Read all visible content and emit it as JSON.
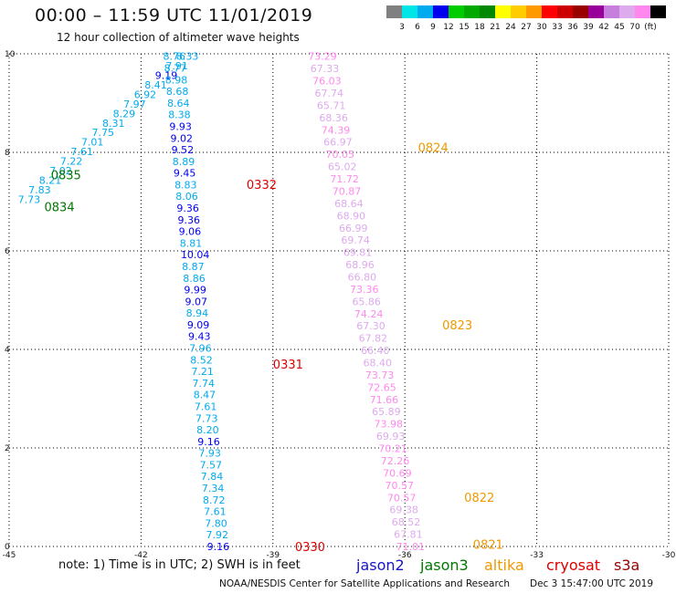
{
  "header": {
    "title": "00:00 – 11:59 UTC 11/01/2019",
    "subtitle": "12 hour collection of altimeter wave heights"
  },
  "colorbar": {
    "colors": [
      "#808080",
      "#00e5e5",
      "#00aaee",
      "#0000ee",
      "#00cc00",
      "#00aa00",
      "#008800",
      "#ffff00",
      "#ffcc00",
      "#ff9900",
      "#ff0000",
      "#cc0000",
      "#990000",
      "#990099",
      "#c77fdd",
      "#ddaaee",
      "#ff88ee",
      "#000000"
    ],
    "labels": [
      "3",
      "6",
      "9",
      "12",
      "15",
      "18",
      "21",
      "24",
      "27",
      "30",
      "33",
      "36",
      "39",
      "42",
      "45",
      "70",
      "(ft)"
    ]
  },
  "footer": {
    "note": "note:  1) Time is in UTC;  2) SWH is in feet",
    "credit": "NOAA/NESDIS Center for Satellite Applications and Research",
    "timestamp": "Dec  3 15:47:00 UTC 2019",
    "legend": [
      {
        "name": "jason2",
        "color": "#1515cc"
      },
      {
        "name": "jason3",
        "color": "#007700"
      },
      {
        "name": "altika",
        "color": "#ee9900"
      },
      {
        "name": "cryosat",
        "color": "#dd0000"
      },
      {
        "name": "s3a",
        "color": "#990000"
      }
    ]
  },
  "chart_data": {
    "type": "scatter",
    "xlim": [
      -45,
      -30
    ],
    "ylim": [
      0,
      10
    ],
    "xticks": [
      "-45",
      "-42",
      "-39",
      "-36",
      "-33",
      "-30"
    ],
    "yticks": [
      "0",
      "2",
      "4",
      "6",
      "8",
      "10"
    ],
    "grid": true,
    "tracks": [
      {
        "satellite": "jason3",
        "start": [
          -41.2,
          9.95
        ],
        "end": [
          -44.8,
          7.05
        ],
        "values": [
          "8.33",
          "7.91",
          "9.19",
          "8.41",
          "6.92",
          "7.97",
          "8.29",
          "8.31",
          "7.75",
          "7.01",
          "7.61",
          "7.22",
          "7.02",
          "8.21",
          "7.83",
          "7.73"
        ]
      },
      {
        "satellite": "cryosat",
        "start": [
          -41.5,
          9.95
        ],
        "end": [
          -40.5,
          0.0
        ],
        "values": [
          "8.76",
          "8.77",
          "8.98",
          "8.68",
          "8.64",
          "8.38",
          "9.93",
          "9.02",
          "9.52",
          "8.89",
          "9.45",
          "8.83",
          "8.06",
          "9.36",
          "9.36",
          "9.06",
          "8.81",
          "10.04",
          "8.87",
          "8.86",
          "9.99",
          "9.07",
          "8.94",
          "9.09",
          "9.43",
          "7.96",
          "8.52",
          "7.21",
          "7.74",
          "8.47",
          "7.61",
          "7.73",
          "8.20",
          "9.16",
          "7.93",
          "7.57",
          "7.84",
          "7.34",
          "8.72",
          "7.61",
          "7.80",
          "7.92",
          "9.16"
        ]
      },
      {
        "satellite": "altika",
        "start": [
          -38.2,
          9.95
        ],
        "end": [
          -36.2,
          0.0
        ],
        "values": [
          "73.29",
          "67.33",
          "76.03",
          "67.74",
          "65.71",
          "68.36",
          "74.39",
          "66.97",
          "70.05",
          "65.02",
          "71.72",
          "70.87",
          "68.64",
          "68.90",
          "66.99",
          "69.74",
          "69.81",
          "68.96",
          "66.80",
          "73.36",
          "65.86",
          "74.24",
          "67.30",
          "67.82",
          "66.40",
          "68.40",
          "73.73",
          "72.65",
          "71.66",
          "65.89",
          "73.98",
          "69.93",
          "70.21",
          "72.26",
          "70.69",
          "70.57",
          "70.57",
          "69.38",
          "68.52",
          "67.81",
          "71.01"
        ]
      }
    ],
    "time_labels": [
      {
        "text": "0835",
        "satellite": "jason3",
        "x": -44.05,
        "y": 7.55
      },
      {
        "text": "0834",
        "satellite": "jason3",
        "x": -44.2,
        "y": 6.9
      },
      {
        "text": "0332",
        "satellite": "cryosat",
        "x": -39.6,
        "y": 7.35
      },
      {
        "text": "0331",
        "satellite": "cryosat",
        "x": -39.0,
        "y": 3.7
      },
      {
        "text": "0330",
        "satellite": "cryosat",
        "x": -38.5,
        "y": 0.0
      },
      {
        "text": "0824",
        "satellite": "altika",
        "x": -35.7,
        "y": 8.1
      },
      {
        "text": "0823",
        "satellite": "altika",
        "x": -35.15,
        "y": 4.5
      },
      {
        "text": "0822",
        "satellite": "altika",
        "x": -34.65,
        "y": 1.0
      },
      {
        "text": "0821",
        "satellite": "altika",
        "x": -34.45,
        "y": 0.05
      }
    ]
  }
}
